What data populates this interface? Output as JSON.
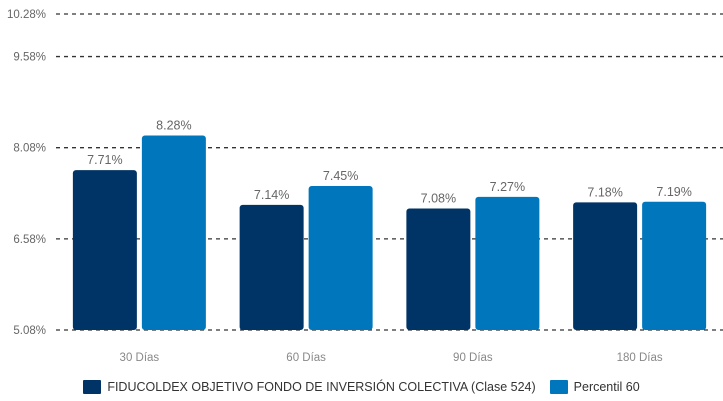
{
  "chart_data": {
    "type": "bar",
    "categories": [
      "30 Días",
      "60 Días",
      "90 Días",
      "180 Días"
    ],
    "series": [
      {
        "name": "FIDUCOLDEX OBJETIVO FONDO DE INVERSIÓN COLECTIVA (Clase 524)",
        "values": [
          7.71,
          7.14,
          7.08,
          7.18
        ],
        "labels": [
          "7.71%",
          "7.14%",
          "7.08%",
          "7.18%"
        ],
        "color": "#003466"
      },
      {
        "name": "Percentil 60",
        "values": [
          8.28,
          7.45,
          7.27,
          7.19
        ],
        "labels": [
          "8.28%",
          "7.45%",
          "7.27%",
          "7.19%"
        ],
        "color": "#0077bd"
      }
    ],
    "yticks": [
      5.08,
      6.58,
      8.08,
      9.58,
      10.28
    ],
    "ytick_labels": [
      "5.08%",
      "6.58%",
      "8.08%",
      "9.58%",
      "10.28%"
    ],
    "ylim": [
      5.08,
      10.28
    ],
    "grid": true,
    "grid_style": "dashed",
    "legend_position": "bottom",
    "title": "",
    "xlabel": "",
    "ylabel": ""
  }
}
